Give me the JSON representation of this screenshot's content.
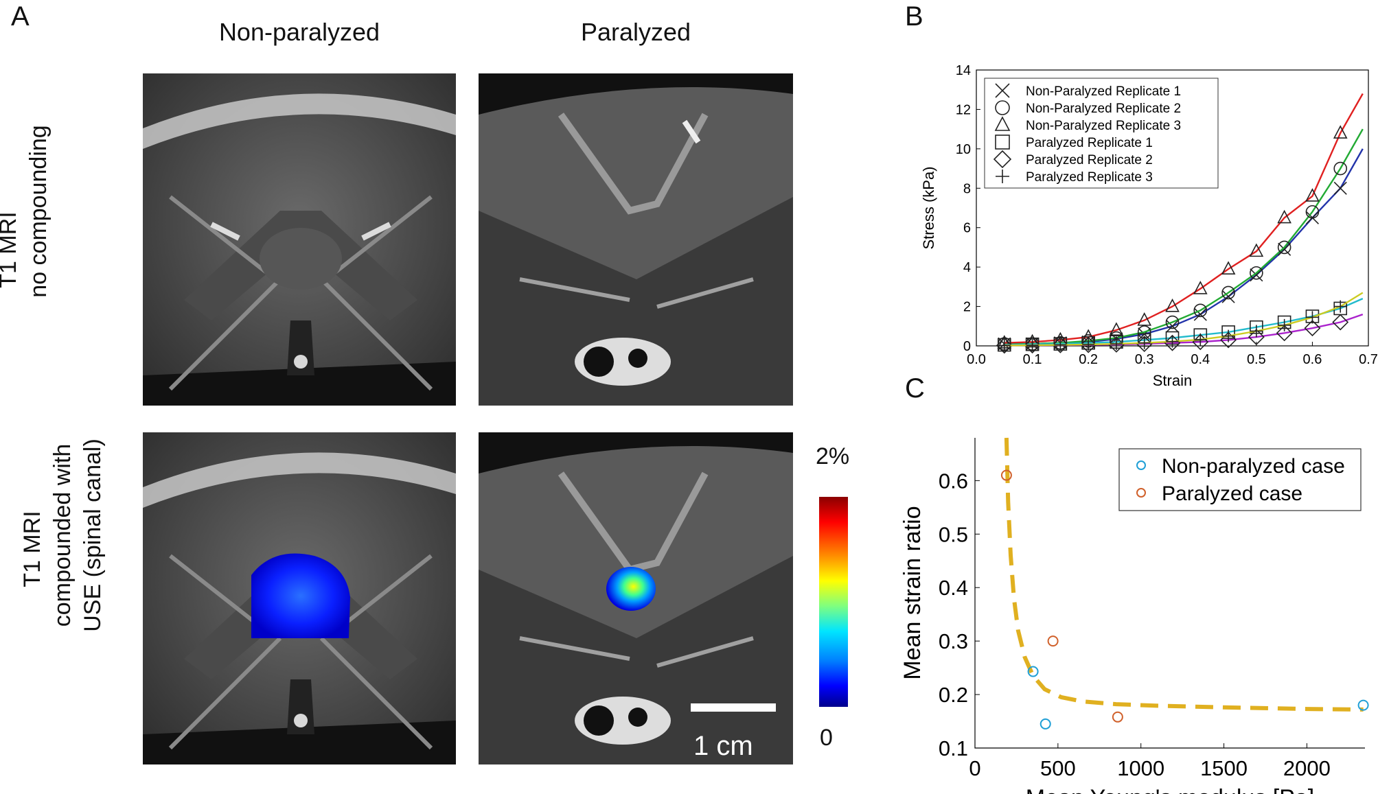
{
  "panels": {
    "a": {
      "label": "A",
      "col_titles": [
        "Non-paralyzed",
        "Paralyzed"
      ],
      "row_labels": [
        [
          "T1 MRI",
          "no compounding"
        ],
        [
          "T1 MRI",
          "compounded with",
          "USE (spinal canal)"
        ]
      ],
      "colorbar": {
        "max_label": "2%",
        "min_label": "0"
      },
      "scale_bar": "1 cm"
    },
    "b": {
      "label": "B"
    },
    "c": {
      "label": "C"
    }
  },
  "chart_data": [
    {
      "type": "line",
      "xlabel": "Strain",
      "ylabel": "Stress (kPa)",
      "xlim": [
        0.0,
        0.7
      ],
      "ylim": [
        0,
        14
      ],
      "xticks": [
        "0.0",
        "0.1",
        "0.2",
        "0.3",
        "0.4",
        "0.5",
        "0.6",
        "0.7"
      ],
      "yticks": [
        "0",
        "2",
        "4",
        "6",
        "8",
        "10",
        "12",
        "14"
      ],
      "legend_position": "top-left",
      "series": [
        {
          "name": "Non-Paralyzed Replicate 1",
          "marker": "x",
          "color": "#2233aa",
          "x": [
            0.05,
            0.1,
            0.15,
            0.2,
            0.25,
            0.3,
            0.35,
            0.4,
            0.45,
            0.5,
            0.55,
            0.6,
            0.65,
            0.69
          ],
          "y": [
            0.1,
            0.1,
            0.15,
            0.2,
            0.35,
            0.6,
            1.0,
            1.6,
            2.5,
            3.6,
            4.9,
            6.5,
            8.0,
            10.0
          ]
        },
        {
          "name": "Non-Paralyzed Replicate 2",
          "marker": "o",
          "color": "#22aa33",
          "x": [
            0.05,
            0.1,
            0.15,
            0.2,
            0.25,
            0.3,
            0.35,
            0.4,
            0.45,
            0.5,
            0.55,
            0.6,
            0.65,
            0.69
          ],
          "y": [
            0.1,
            0.1,
            0.15,
            0.25,
            0.4,
            0.7,
            1.2,
            1.8,
            2.7,
            3.7,
            5.0,
            6.8,
            9.0,
            11.0
          ]
        },
        {
          "name": "Non-Paralyzed Replicate 3",
          "marker": "triangle",
          "color": "#e02020",
          "x": [
            0.05,
            0.1,
            0.15,
            0.2,
            0.25,
            0.3,
            0.35,
            0.4,
            0.45,
            0.5,
            0.55,
            0.6,
            0.65,
            0.69
          ],
          "y": [
            0.15,
            0.2,
            0.3,
            0.45,
            0.8,
            1.3,
            2.0,
            2.9,
            3.9,
            4.8,
            6.5,
            7.6,
            10.8,
            12.8
          ]
        },
        {
          "name": "Paralyzed Replicate 1",
          "marker": "square",
          "color": "#22bbcc",
          "x": [
            0.05,
            0.1,
            0.15,
            0.2,
            0.25,
            0.3,
            0.35,
            0.4,
            0.45,
            0.5,
            0.55,
            0.6,
            0.65,
            0.69
          ],
          "y": [
            0.05,
            0.08,
            0.1,
            0.15,
            0.2,
            0.3,
            0.4,
            0.55,
            0.7,
            0.95,
            1.2,
            1.5,
            1.9,
            2.4
          ]
        },
        {
          "name": "Paralyzed Replicate 2",
          "marker": "diamond",
          "color": "#aa22cc",
          "x": [
            0.05,
            0.1,
            0.15,
            0.2,
            0.25,
            0.3,
            0.35,
            0.4,
            0.45,
            0.5,
            0.55,
            0.6,
            0.65,
            0.69
          ],
          "y": [
            0.02,
            0.03,
            0.04,
            0.05,
            0.07,
            0.1,
            0.15,
            0.2,
            0.3,
            0.45,
            0.65,
            0.9,
            1.2,
            1.6
          ]
        },
        {
          "name": "Paralyzed Replicate 3",
          "marker": "plus",
          "color": "#cccc22",
          "x": [
            0.05,
            0.1,
            0.15,
            0.2,
            0.25,
            0.3,
            0.35,
            0.4,
            0.45,
            0.5,
            0.55,
            0.6,
            0.65,
            0.69
          ],
          "y": [
            0.02,
            0.03,
            0.05,
            0.07,
            0.1,
            0.15,
            0.22,
            0.32,
            0.5,
            0.75,
            1.05,
            1.45,
            2.0,
            2.7
          ]
        }
      ]
    },
    {
      "type": "scatter",
      "xlabel": "Mean Young's modulus [Pa]",
      "ylabel": "Mean strain ratio",
      "xlim": [
        0,
        2350
      ],
      "ylim": [
        0.1,
        0.68
      ],
      "xticks": [
        "0",
        "500",
        "1000",
        "1500",
        "2000"
      ],
      "yticks": [
        "0.1",
        "0.2",
        "0.3",
        "0.4",
        "0.5",
        "0.6"
      ],
      "legend_position": "top-right",
      "series": [
        {
          "name": "Non-paralyzed case",
          "color": "#1f9fd6",
          "x": [
            350,
            425,
            2340
          ],
          "y": [
            0.243,
            0.145,
            0.18
          ]
        },
        {
          "name": "Paralyzed case",
          "color": "#d0602a",
          "x": [
            190,
            470,
            860
          ],
          "y": [
            0.61,
            0.3,
            0.158
          ]
        }
      ],
      "fit_curve": {
        "color": "#e0b020",
        "x": [
          190,
          200,
          215,
          235,
          260,
          300,
          350,
          420,
          520,
          650,
          850,
          1100,
          1500,
          2000,
          2340
        ],
        "y": [
          0.68,
          0.56,
          0.46,
          0.38,
          0.32,
          0.27,
          0.235,
          0.21,
          0.195,
          0.187,
          0.182,
          0.179,
          0.176,
          0.173,
          0.172
        ]
      }
    }
  ]
}
